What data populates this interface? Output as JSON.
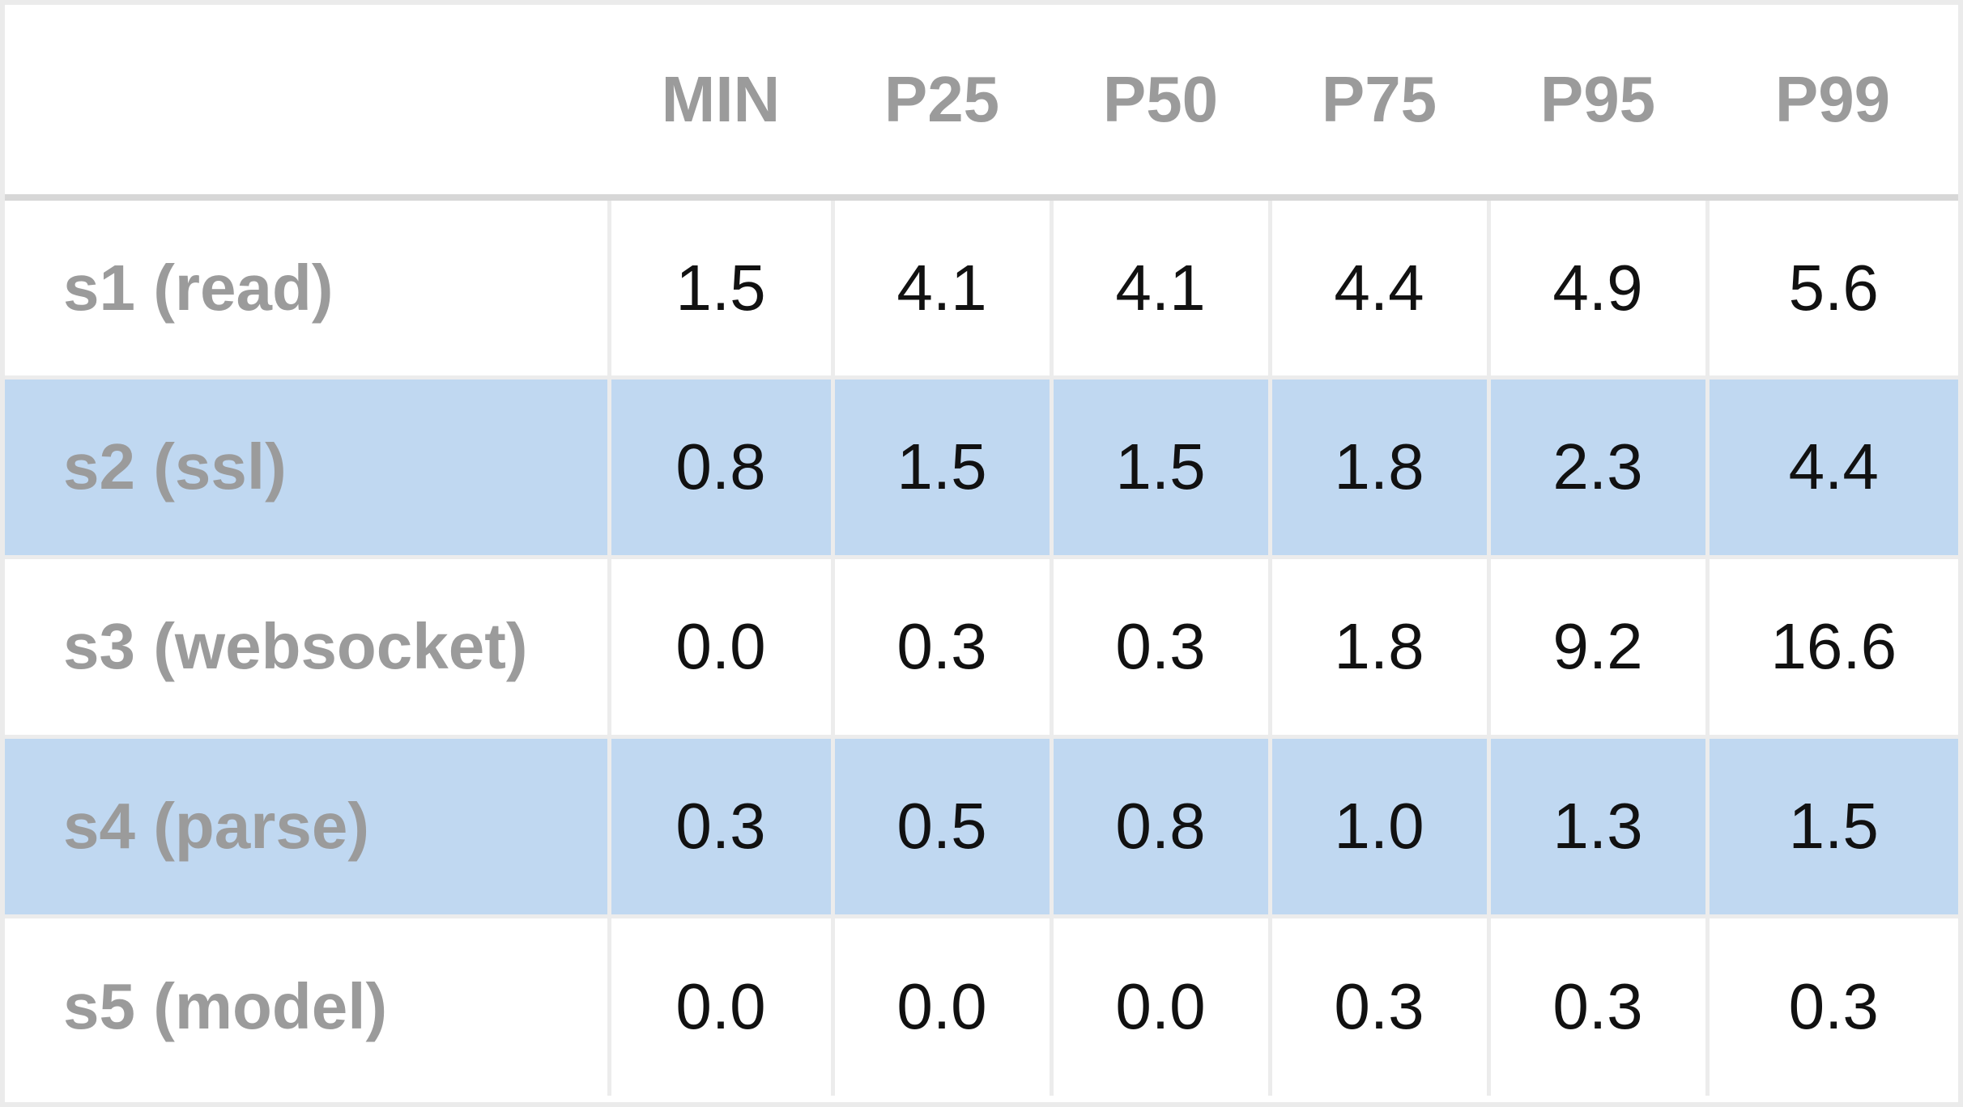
{
  "chart_data": {
    "type": "table",
    "columns": [
      "MIN",
      "P25",
      "P50",
      "P75",
      "P95",
      "P99"
    ],
    "rows": [
      {
        "label": "s1 (read)",
        "values": [
          "1.5",
          "4.1",
          "4.1",
          "4.4",
          "4.9",
          "5.6"
        ]
      },
      {
        "label": "s2 (ssl)",
        "values": [
          "0.8",
          "1.5",
          "1.5",
          "1.8",
          "2.3",
          "4.4"
        ]
      },
      {
        "label": "s3 (websocket)",
        "values": [
          "0.0",
          "0.3",
          "0.3",
          "1.8",
          "9.2",
          "16.6"
        ]
      },
      {
        "label": "s4 (parse)",
        "values": [
          "0.3",
          "0.5",
          "0.8",
          "1.0",
          "1.3",
          "1.5"
        ]
      },
      {
        "label": "s5 (model)",
        "values": [
          "0.0",
          "0.0",
          "0.0",
          "0.3",
          "0.3",
          "0.3"
        ]
      }
    ],
    "striped_rows": [
      1,
      3
    ],
    "colors": {
      "stripe": "#c0d8f1",
      "header_text": "#9b9b9b",
      "label_text": "#9b9b9b",
      "value_text": "#111111",
      "grid": "#ececec"
    }
  }
}
